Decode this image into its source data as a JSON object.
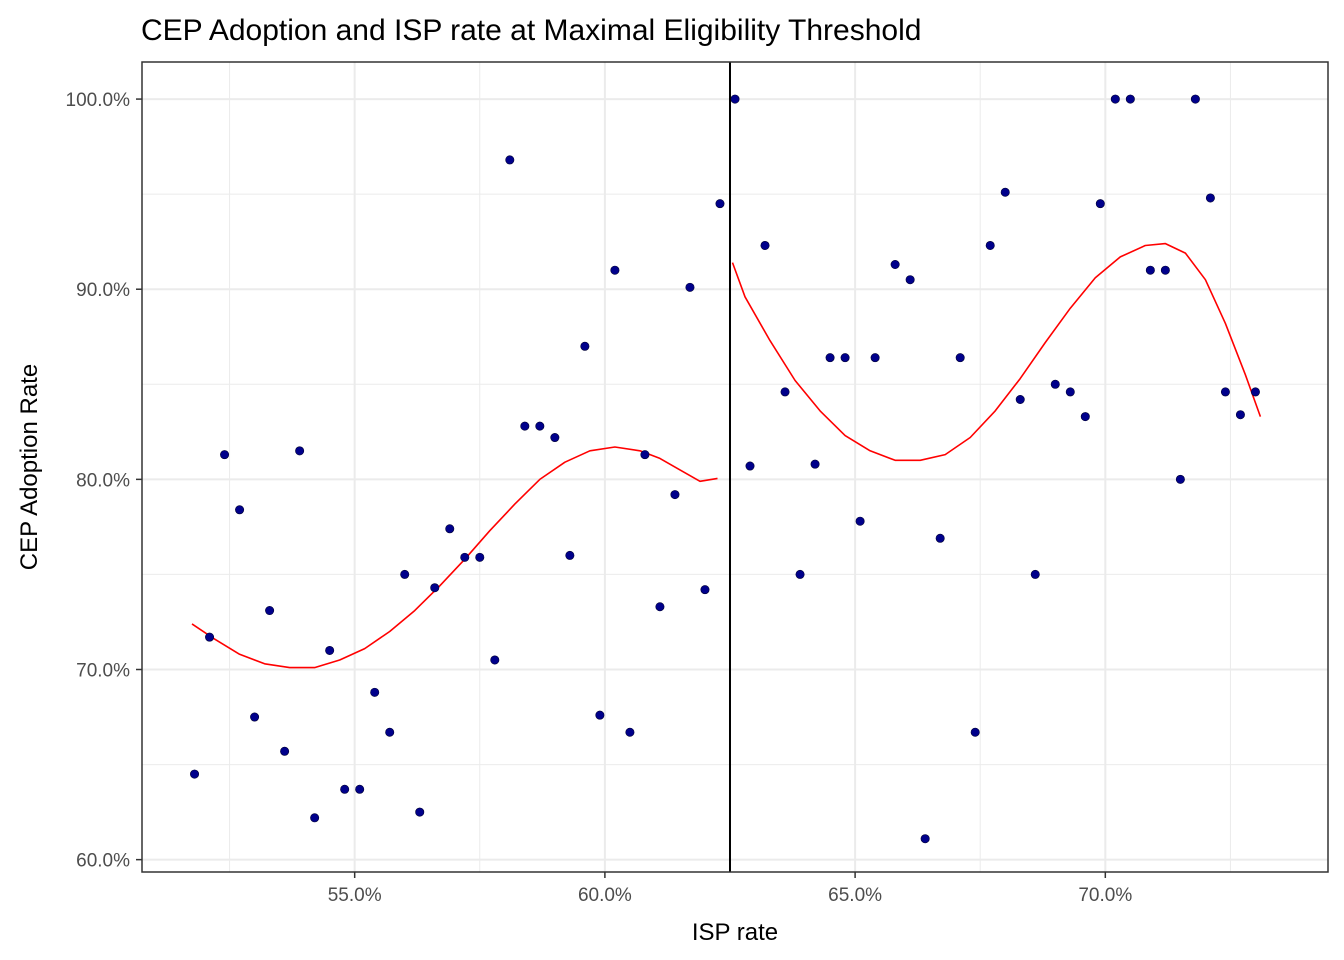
{
  "chart_data": {
    "type": "scatter",
    "title": "CEP Adoption and ISP rate at Maximal Eligibility Threshold",
    "xlabel": "ISP rate",
    "ylabel": "CEP Adoption Rate",
    "xlim": [
      0.5075,
      0.7445
    ],
    "ylim": [
      0.5935,
      1.0195
    ],
    "x_major_ticks": [
      0.55,
      0.6,
      0.65,
      0.7
    ],
    "x_tick_labels": [
      "55.0%",
      "60.0%",
      "65.0%",
      "70.0%"
    ],
    "x_minor_ticks": [
      0.525,
      0.575,
      0.625,
      0.675,
      0.725
    ],
    "y_major_ticks": [
      0.6,
      0.7,
      0.8,
      0.9,
      1.0
    ],
    "y_tick_labels": [
      "60.0%",
      "70.0%",
      "80.0%",
      "90.0%",
      "100.0%"
    ],
    "y_minor_ticks": [
      0.65,
      0.75,
      0.85,
      0.95
    ],
    "grid": true,
    "threshold_x": 0.625,
    "colors": {
      "points": "#00008b",
      "fit": "#ff0000",
      "threshold": "#000000",
      "grid": "#ebebeb",
      "frame": "#333333"
    },
    "points": [
      [
        0.518,
        0.645
      ],
      [
        0.521,
        0.717
      ],
      [
        0.524,
        0.813
      ],
      [
        0.527,
        0.784
      ],
      [
        0.53,
        0.675
      ],
      [
        0.533,
        0.731
      ],
      [
        0.536,
        0.657
      ],
      [
        0.539,
        0.815
      ],
      [
        0.542,
        0.622
      ],
      [
        0.545,
        0.71
      ],
      [
        0.548,
        0.637
      ],
      [
        0.551,
        0.637
      ],
      [
        0.554,
        0.688
      ],
      [
        0.557,
        0.667
      ],
      [
        0.56,
        0.75
      ],
      [
        0.563,
        0.625
      ],
      [
        0.566,
        0.743
      ],
      [
        0.569,
        0.774
      ],
      [
        0.572,
        0.759
      ],
      [
        0.575,
        0.759
      ],
      [
        0.578,
        0.705
      ],
      [
        0.581,
        0.968
      ],
      [
        0.584,
        0.828
      ],
      [
        0.587,
        0.828
      ],
      [
        0.59,
        0.822
      ],
      [
        0.593,
        0.76
      ],
      [
        0.596,
        0.87
      ],
      [
        0.599,
        0.676
      ],
      [
        0.602,
        0.91
      ],
      [
        0.605,
        0.667
      ],
      [
        0.608,
        0.813
      ],
      [
        0.611,
        0.733
      ],
      [
        0.614,
        0.792
      ],
      [
        0.617,
        0.901
      ],
      [
        0.62,
        0.742
      ],
      [
        0.623,
        0.945
      ],
      [
        0.626,
        1.0
      ],
      [
        0.629,
        0.807
      ],
      [
        0.632,
        0.923
      ],
      [
        0.636,
        0.846
      ],
      [
        0.639,
        0.75
      ],
      [
        0.642,
        0.808
      ],
      [
        0.645,
        0.864
      ],
      [
        0.648,
        0.864
      ],
      [
        0.651,
        0.778
      ],
      [
        0.654,
        0.864
      ],
      [
        0.658,
        0.913
      ],
      [
        0.661,
        0.905
      ],
      [
        0.664,
        0.611
      ],
      [
        0.667,
        0.769
      ],
      [
        0.671,
        0.864
      ],
      [
        0.674,
        0.667
      ],
      [
        0.677,
        0.923
      ],
      [
        0.68,
        0.951
      ],
      [
        0.683,
        0.842
      ],
      [
        0.686,
        0.75
      ],
      [
        0.69,
        0.85
      ],
      [
        0.693,
        0.846
      ],
      [
        0.696,
        0.833
      ],
      [
        0.699,
        0.945
      ],
      [
        0.702,
        1.0
      ],
      [
        0.705,
        1.0
      ],
      [
        0.709,
        0.91
      ],
      [
        0.712,
        0.91
      ],
      [
        0.715,
        0.8
      ],
      [
        0.718,
        1.0
      ],
      [
        0.721,
        0.948
      ],
      [
        0.724,
        0.846
      ],
      [
        0.727,
        0.834
      ],
      [
        0.73,
        0.846
      ]
    ],
    "fit_left": [
      [
        0.5175,
        0.724
      ],
      [
        0.522,
        0.716
      ],
      [
        0.527,
        0.708
      ],
      [
        0.532,
        0.703
      ],
      [
        0.537,
        0.701
      ],
      [
        0.542,
        0.701
      ],
      [
        0.547,
        0.705
      ],
      [
        0.552,
        0.711
      ],
      [
        0.557,
        0.72
      ],
      [
        0.562,
        0.731
      ],
      [
        0.567,
        0.744
      ],
      [
        0.572,
        0.758
      ],
      [
        0.577,
        0.773
      ],
      [
        0.582,
        0.787
      ],
      [
        0.587,
        0.8
      ],
      [
        0.592,
        0.809
      ],
      [
        0.597,
        0.815
      ],
      [
        0.602,
        0.817
      ],
      [
        0.607,
        0.815
      ],
      [
        0.611,
        0.811
      ],
      [
        0.615,
        0.805
      ],
      [
        0.619,
        0.799
      ],
      [
        0.6225,
        0.8005
      ]
    ],
    "fit_right": [
      [
        0.6255,
        0.914
      ],
      [
        0.628,
        0.896
      ],
      [
        0.633,
        0.873
      ],
      [
        0.638,
        0.852
      ],
      [
        0.643,
        0.836
      ],
      [
        0.648,
        0.823
      ],
      [
        0.653,
        0.815
      ],
      [
        0.658,
        0.81
      ],
      [
        0.663,
        0.81
      ],
      [
        0.668,
        0.813
      ],
      [
        0.673,
        0.822
      ],
      [
        0.678,
        0.836
      ],
      [
        0.683,
        0.853
      ],
      [
        0.688,
        0.872
      ],
      [
        0.693,
        0.89
      ],
      [
        0.698,
        0.906
      ],
      [
        0.703,
        0.917
      ],
      [
        0.708,
        0.923
      ],
      [
        0.712,
        0.924
      ],
      [
        0.716,
        0.919
      ],
      [
        0.72,
        0.905
      ],
      [
        0.724,
        0.882
      ],
      [
        0.728,
        0.855
      ],
      [
        0.731,
        0.833
      ]
    ]
  }
}
